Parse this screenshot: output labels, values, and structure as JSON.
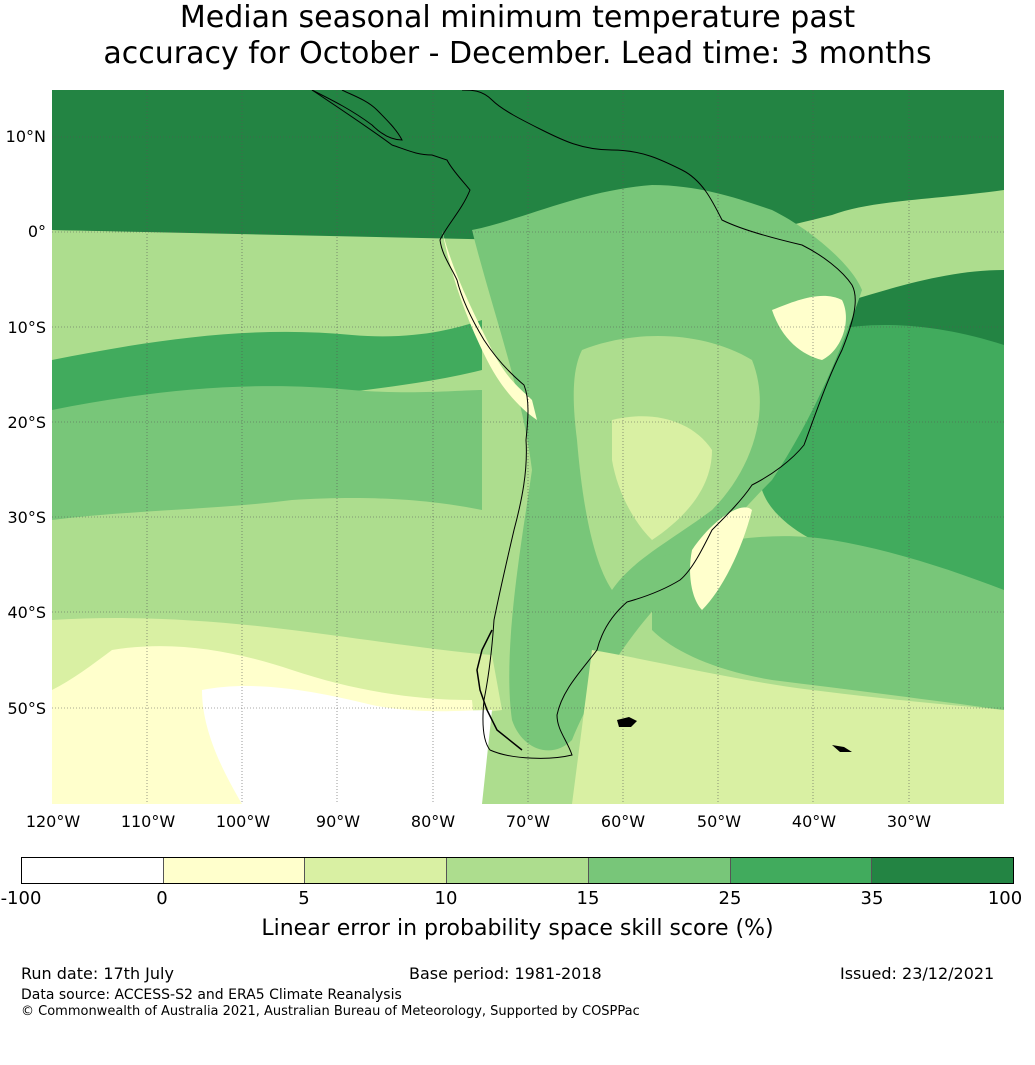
{
  "title": {
    "line1": "Median seasonal minimum temperature past",
    "line2": "accuracy for October - December. Lead time: 3 months"
  },
  "map": {
    "lat_labels": [
      "10°N",
      "0°",
      "10°S",
      "20°S",
      "30°S",
      "40°S",
      "50°S"
    ],
    "lon_labels": [
      "120°W",
      "110°W",
      "100°W",
      "90°W",
      "80°W",
      "70°W",
      "60°W",
      "50°W",
      "40°W",
      "30°W"
    ],
    "skill_colors": {
      "lt0": "#ffffff",
      "0_5": "#ffffcc",
      "5_10": "#d9f0a3",
      "10_15": "#addd8e",
      "15_25": "#78c679",
      "25_35": "#41ab5d",
      "35_100": "#238443"
    }
  },
  "colorbar": {
    "ticks": [
      "-100",
      "0",
      "5",
      "10",
      "15",
      "25",
      "35",
      "100"
    ],
    "colors": [
      "#ffffff",
      "#ffffcc",
      "#d9f0a3",
      "#addd8e",
      "#78c679",
      "#41ab5d",
      "#238443"
    ],
    "label": "Linear error in probability space skill score (%)"
  },
  "footer": {
    "run_date": "Run date: 17th July",
    "base_period": "Base period: 1981-2018",
    "issued": "Issued: 23/12/2021",
    "data_source": "Data source: ACCESS-S2 and ERA5 Climate Reanalysis",
    "copyright": "© Commonwealth of Australia 2021, Australian Bureau of Meteorology, Supported by COSPPac"
  }
}
